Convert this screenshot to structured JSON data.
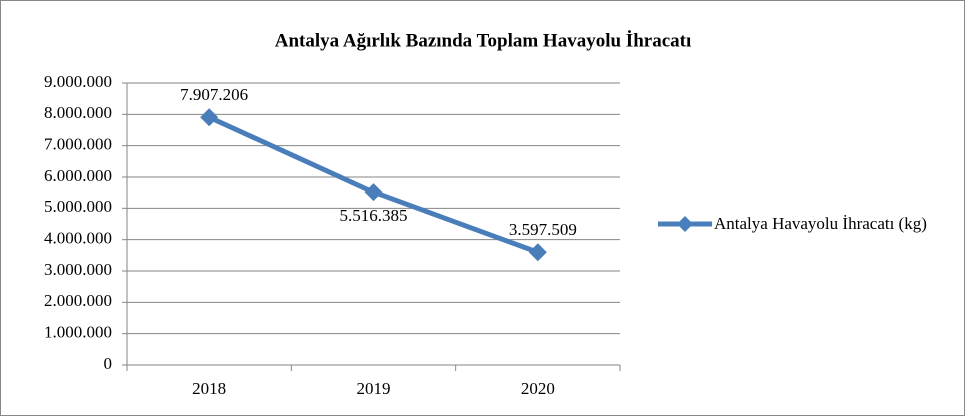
{
  "chart_data": {
    "type": "line",
    "title": "Antalya Ağırlık Bazında Toplam Havayolu İhracatı",
    "categories": [
      "2018",
      "2019",
      "2020"
    ],
    "series": [
      {
        "name": "Antalya Havayolu İhracatı (kg)",
        "color": "#4a7ebb",
        "values": [
          7907206,
          5516385,
          3597509
        ],
        "value_labels": [
          "7.907.206",
          "5.516.385",
          "3.597.509"
        ]
      }
    ],
    "ylim": [
      0,
      9000000
    ],
    "yticks": [
      0,
      {
        "value": 1000000,
        "label": "1.000.000"
      },
      {
        "value": 2000000,
        "label": "2.000.000"
      },
      {
        "value": 3000000,
        "label": "3.000.000"
      },
      {
        "value": 4000000,
        "label": "4.000.000"
      },
      {
        "value": 5000000,
        "label": "5.000.000"
      },
      {
        "value": 6000000,
        "label": "6.000.000"
      },
      {
        "value": 7000000,
        "label": "7.000.000"
      },
      {
        "value": 8000000,
        "label": "8.000.000"
      },
      {
        "value": 9000000,
        "label": "9.000.000"
      }
    ],
    "grid": true,
    "legend": "right"
  }
}
